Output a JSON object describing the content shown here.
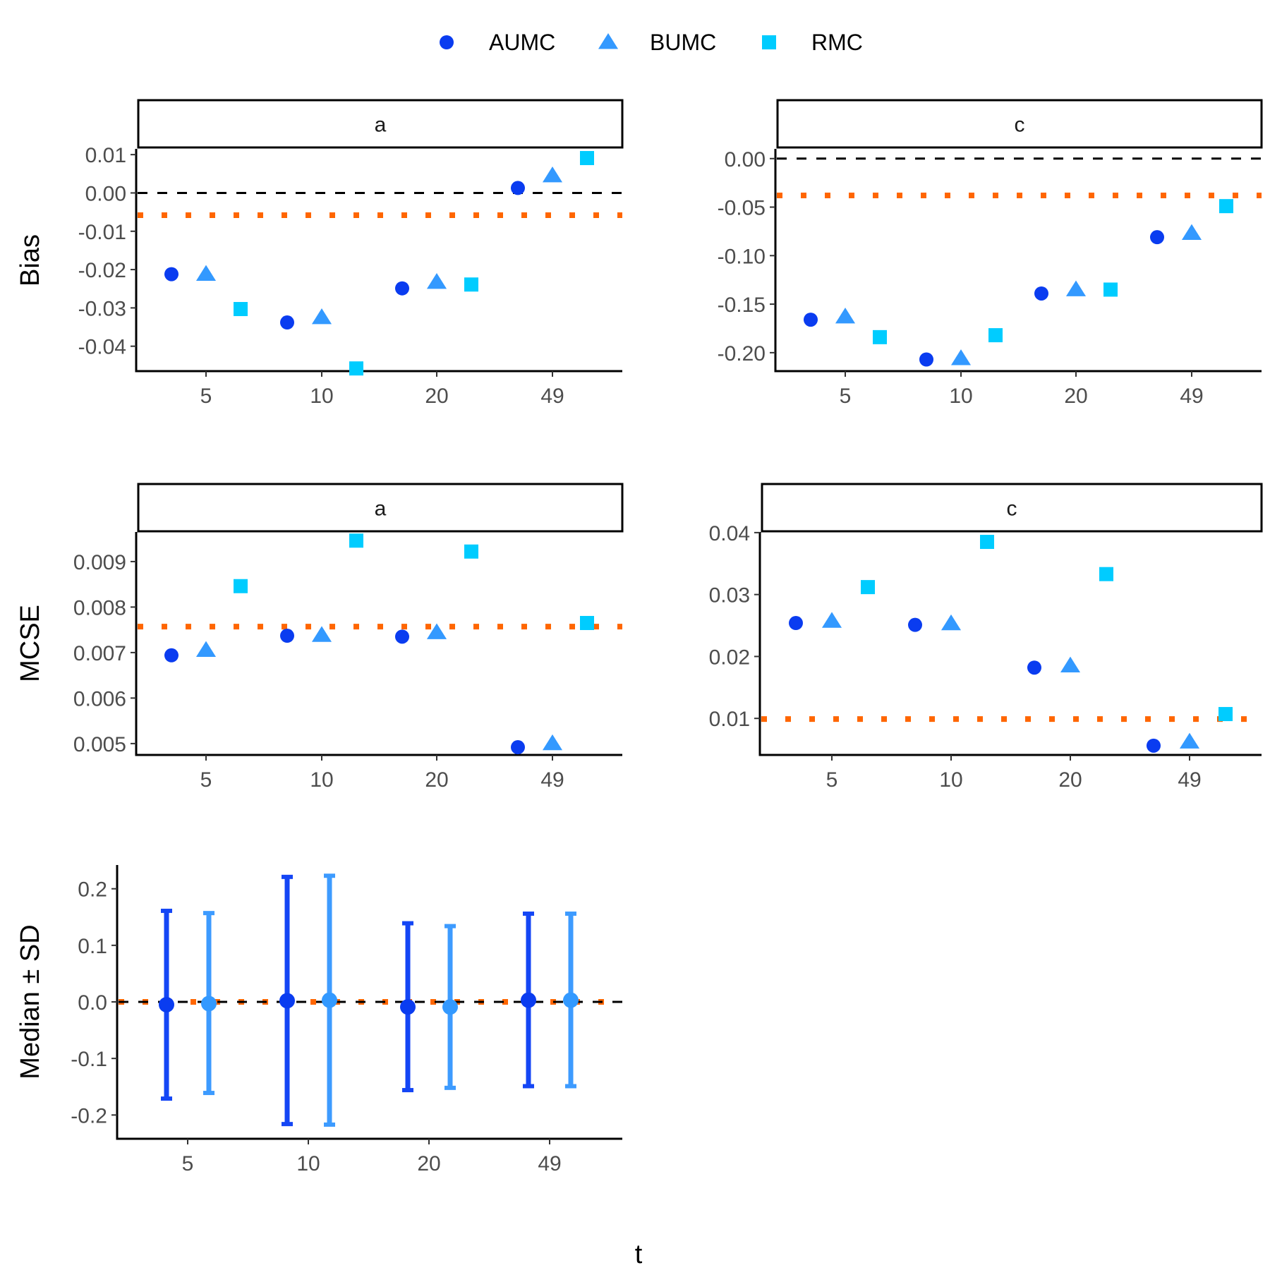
{
  "colors": {
    "AUMC": "#0a3cf0",
    "BUMC": "#3399ff",
    "RMC": "#00ccff",
    "AUMC_errorbar": "#1446f5",
    "BUMC_errorbar": "#3d9bff",
    "reference_dotted": "#ff6600",
    "zero_dashed": "#000000"
  },
  "legend": {
    "position": "top",
    "items": [
      {
        "label": "AUMC",
        "shape": "circle"
      },
      {
        "label": "BUMC",
        "shape": "triangle"
      },
      {
        "label": "RMC",
        "shape": "square"
      }
    ]
  },
  "x_title": "t",
  "chart_data": [
    {
      "type": "scatter",
      "panel": "bias-a",
      "facet": "a",
      "ylabel": "Bias",
      "categories": [
        "5",
        "10",
        "20",
        "49"
      ],
      "ylim": [
        -0.0465,
        0.0115
      ],
      "yticks": [
        0.01,
        0.0,
        -0.01,
        -0.02,
        -0.03,
        -0.04
      ],
      "ytick_labels": [
        "0.01",
        "0.00",
        "-0.01",
        "-0.02",
        "-0.03",
        "-0.04"
      ],
      "reference_dotted": -0.0058,
      "reference_dashed": 0.0,
      "series": [
        {
          "name": "AUMC",
          "values": [
            -0.0212,
            -0.0338,
            -0.0249,
            0.0013
          ]
        },
        {
          "name": "BUMC",
          "values": [
            -0.0212,
            -0.0325,
            -0.0233,
            0.0045
          ]
        },
        {
          "name": "RMC",
          "values": [
            -0.0303,
            -0.0458,
            -0.0239,
            0.0091
          ]
        }
      ]
    },
    {
      "type": "scatter",
      "panel": "bias-c",
      "facet": "c",
      "ylabel": "",
      "categories": [
        "5",
        "10",
        "20",
        "49"
      ],
      "ylim": [
        -0.219,
        0.01
      ],
      "yticks": [
        0.0,
        -0.05,
        -0.1,
        -0.15,
        -0.2
      ],
      "ytick_labels": [
        "0.00",
        "-0.05",
        "-0.10",
        "-0.15",
        "-0.20"
      ],
      "reference_dotted": -0.038,
      "reference_dashed": 0.0,
      "series": [
        {
          "name": "AUMC",
          "values": [
            -0.166,
            -0.207,
            -0.139,
            -0.081
          ]
        },
        {
          "name": "BUMC",
          "values": [
            -0.163,
            -0.206,
            -0.135,
            -0.077
          ]
        },
        {
          "name": "RMC",
          "values": [
            -0.184,
            -0.182,
            -0.135,
            -0.049
          ]
        }
      ]
    },
    {
      "type": "scatter",
      "panel": "mcse-a",
      "facet": "a",
      "ylabel": "MCSE",
      "categories": [
        "5",
        "10",
        "20",
        "49"
      ],
      "ylim": [
        0.00475,
        0.00965
      ],
      "yticks": [
        0.009,
        0.008,
        0.007,
        0.006,
        0.005
      ],
      "ytick_labels": [
        "0.009",
        "0.008",
        "0.007",
        "0.006",
        "0.005"
      ],
      "reference_dotted": 0.00757,
      "reference_dashed": null,
      "series": [
        {
          "name": "AUMC",
          "values": [
            0.00694,
            0.00737,
            0.00735,
            0.00492
          ]
        },
        {
          "name": "BUMC",
          "values": [
            0.00705,
            0.00738,
            0.00744,
            0.005
          ]
        },
        {
          "name": "RMC",
          "values": [
            0.00846,
            0.00946,
            0.00922,
            0.00765
          ]
        }
      ]
    },
    {
      "type": "scatter",
      "panel": "mcse-c",
      "facet": "c",
      "ylabel": "",
      "categories": [
        "5",
        "10",
        "20",
        "49"
      ],
      "ylim": [
        0.0041,
        0.0401
      ],
      "yticks": [
        0.04,
        0.03,
        0.02,
        0.01
      ],
      "ytick_labels": [
        "0.04",
        "0.03",
        "0.02",
        "0.01"
      ],
      "reference_dotted": 0.0099,
      "reference_dashed": null,
      "series": [
        {
          "name": "AUMC",
          "values": [
            0.0254,
            0.0251,
            0.0182,
            0.0056
          ]
        },
        {
          "name": "BUMC",
          "values": [
            0.0257,
            0.0253,
            0.0185,
            0.0062
          ]
        },
        {
          "name": "RMC",
          "values": [
            0.0312,
            0.0385,
            0.0333,
            0.0107
          ]
        }
      ]
    },
    {
      "type": "errorbar",
      "panel": "median-sd",
      "facet": "",
      "ylabel": "Median ± SD",
      "categories": [
        "5",
        "10",
        "20",
        "49"
      ],
      "ylim": [
        -0.242,
        0.242
      ],
      "yticks": [
        0.2,
        0.1,
        0.0,
        -0.1,
        -0.2
      ],
      "ytick_labels": [
        "0.2",
        "0.1",
        "0.0",
        "-0.1",
        "-0.2"
      ],
      "reference_dotted": 0.0,
      "reference_dashed": 0.0,
      "series": [
        {
          "name": "AUMC",
          "median": [
            -0.005,
            0.002,
            -0.009,
            0.003
          ],
          "lower": [
            -0.171,
            -0.216,
            -0.156,
            -0.149
          ],
          "upper": [
            0.161,
            0.221,
            0.139,
            0.156
          ]
        },
        {
          "name": "BUMC",
          "median": [
            -0.003,
            0.003,
            -0.009,
            0.003
          ],
          "lower": [
            -0.161,
            -0.217,
            -0.152,
            -0.149
          ],
          "upper": [
            0.157,
            0.223,
            0.134,
            0.156
          ]
        }
      ]
    }
  ]
}
